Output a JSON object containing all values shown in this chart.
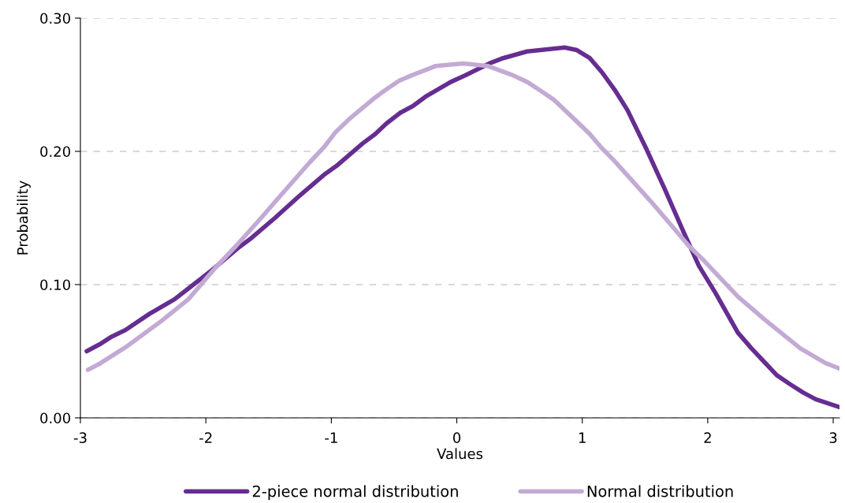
{
  "chart_data": {
    "type": "line",
    "xlabel": "Values",
    "ylabel": "Probability",
    "xlim": [
      -3,
      3.05
    ],
    "xticks": [
      {
        "value": -3,
        "label": "-3"
      },
      {
        "value": -2,
        "label": "-2"
      },
      {
        "value": -1,
        "label": "-1"
      },
      0,
      1,
      2,
      3
    ],
    "ylim": [
      0,
      0.3
    ],
    "yticks": [
      {
        "value": 0,
        "label": "0.00"
      },
      {
        "value": 0.1,
        "label": "0.10"
      },
      {
        "value": 0.2,
        "label": "0.20"
      },
      {
        "value": 0.3,
        "label": "0.30"
      }
    ],
    "grid": "y",
    "legend": "bottom",
    "marker": "none",
    "line_style": "solid",
    "series": [
      {
        "name": "2-piece normal distribution",
        "color": "#662d91",
        "x": [
          -2.95,
          -2.85,
          -2.75,
          -2.64,
          -2.45,
          -2.25,
          -2.14,
          -1.95,
          -1.75,
          -1.65,
          -1.45,
          -1.25,
          -1.05,
          -0.96,
          -0.75,
          -0.65,
          -0.56,
          -0.45,
          -0.35,
          -0.25,
          -0.05,
          0.065,
          0.26,
          0.37,
          0.56,
          0.86,
          0.957,
          1.06,
          1.16,
          1.26,
          1.36,
          1.515,
          1.656,
          1.8,
          1.93,
          2.06,
          2.24,
          2.35,
          2.45,
          2.55,
          2.66,
          2.76,
          2.86,
          3.05
        ],
        "values": [
          0.05,
          0.055,
          0.061,
          0.066,
          0.078,
          0.089,
          0.097,
          0.111,
          0.127,
          0.134,
          0.15,
          0.167,
          0.183,
          0.189,
          0.206,
          0.213,
          0.221,
          0.229,
          0.234,
          0.241,
          0.252,
          0.257,
          0.266,
          0.27,
          0.275,
          0.278,
          0.276,
          0.27,
          0.259,
          0.246,
          0.231,
          0.201,
          0.172,
          0.141,
          0.114,
          0.094,
          0.064,
          0.052,
          0.042,
          0.032,
          0.025,
          0.019,
          0.014,
          0.008
        ]
      },
      {
        "name": "Normal distribution",
        "color": "#c3aad4",
        "x": [
          -2.94,
          -2.84,
          -2.64,
          -2.35,
          -2.14,
          -1.93,
          -1.76,
          -1.56,
          -1.45,
          -1.17,
          -1.06,
          -0.97,
          -0.86,
          -0.67,
          -0.57,
          -0.46,
          -0.36,
          -0.17,
          0.05,
          0.25,
          0.45,
          0.563,
          0.66,
          0.77,
          0.95,
          1.06,
          1.15,
          1.255,
          1.55,
          1.66,
          1.85,
          1.96,
          2.06,
          2.24,
          2.45,
          2.74,
          2.94,
          3.05
        ],
        "values": [
          0.036,
          0.041,
          0.053,
          0.073,
          0.089,
          0.112,
          0.129,
          0.15,
          0.162,
          0.192,
          0.203,
          0.214,
          0.224,
          0.239,
          0.246,
          0.253,
          0.257,
          0.264,
          0.266,
          0.264,
          0.257,
          0.252,
          0.246,
          0.239,
          0.223,
          0.213,
          0.203,
          0.193,
          0.162,
          0.15,
          0.129,
          0.119,
          0.109,
          0.091,
          0.074,
          0.052,
          0.041,
          0.037
        ]
      }
    ]
  }
}
